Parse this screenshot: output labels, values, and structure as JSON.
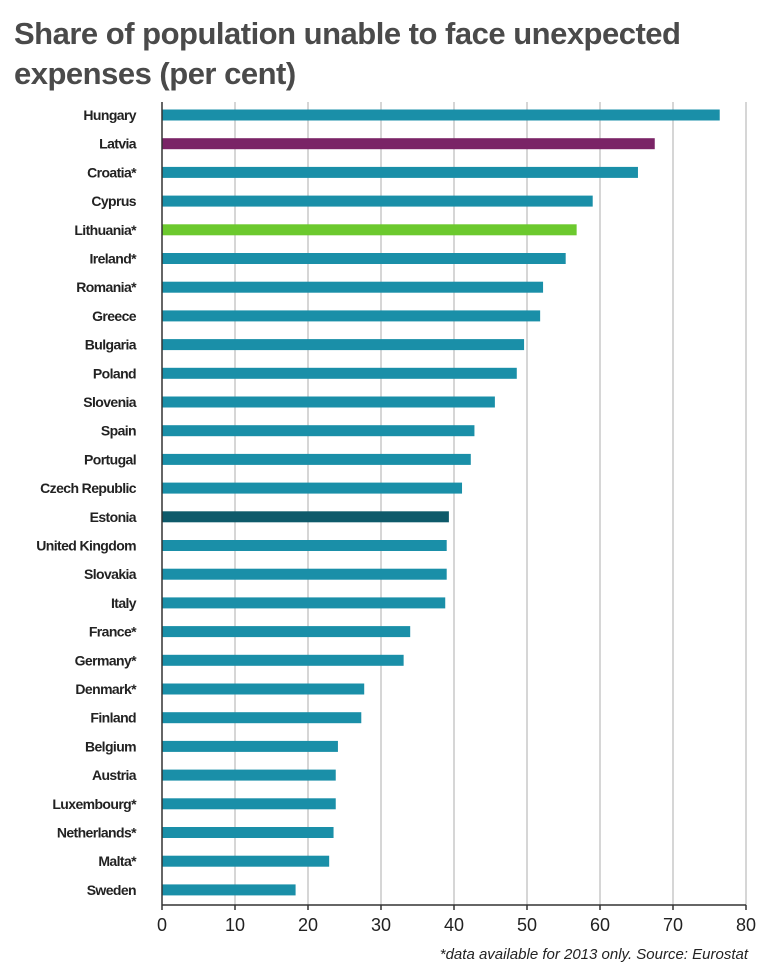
{
  "chart_data": {
    "type": "bar",
    "orientation": "horizontal",
    "title": "Share of population unable to face unexpected expenses (per cent)",
    "categories": [
      "Hungary",
      "Latvia",
      "Croatia*",
      "Cyprus",
      "Lithuania*",
      "Ireland*",
      "Romania*",
      "Greece",
      "Bulgaria",
      "Poland",
      "Slovenia",
      "Spain",
      "Portugal",
      "Czech Republic",
      "Estonia",
      "United Kingdom",
      "Slovakia",
      "Italy",
      "France*",
      "Germany*",
      "Denmark*",
      "Finland",
      "Belgium",
      "Austria",
      "Luxembourg*",
      "Netherlands*",
      "Malta*",
      "Sweden"
    ],
    "values": [
      76.4,
      67.5,
      65.2,
      59.0,
      56.8,
      55.3,
      52.2,
      51.8,
      49.6,
      48.6,
      45.6,
      42.8,
      42.3,
      41.1,
      39.3,
      39.0,
      39.0,
      38.8,
      34.0,
      33.1,
      27.7,
      27.3,
      24.1,
      23.8,
      23.8,
      23.5,
      22.9,
      18.3
    ],
    "bar_colors": [
      "#1a8fa8",
      "#7a2466",
      "#1a8fa8",
      "#1a8fa8",
      "#6cc92e",
      "#1a8fa8",
      "#1a8fa8",
      "#1a8fa8",
      "#1a8fa8",
      "#1a8fa8",
      "#1a8fa8",
      "#1a8fa8",
      "#1a8fa8",
      "#1a8fa8",
      "#0e5a6a",
      "#1a8fa8",
      "#1a8fa8",
      "#1a8fa8",
      "#1a8fa8",
      "#1a8fa8",
      "#1a8fa8",
      "#1a8fa8",
      "#1a8fa8",
      "#1a8fa8",
      "#1a8fa8",
      "#1a8fa8",
      "#1a8fa8",
      "#1a8fa8"
    ],
    "xlim": [
      0,
      80
    ],
    "xticks": [
      0,
      10,
      20,
      30,
      40,
      50,
      60,
      70,
      80
    ],
    "xlabel": "",
    "ylabel": "",
    "grid": "vertical",
    "footnote": "*data available for 2013 only.  Source: Eurostat"
  },
  "colors": {
    "default_bar": "#1a8fa8",
    "grid": "#c8c8c8",
    "axis": "#333333",
    "title": "#4a4a4a"
  }
}
